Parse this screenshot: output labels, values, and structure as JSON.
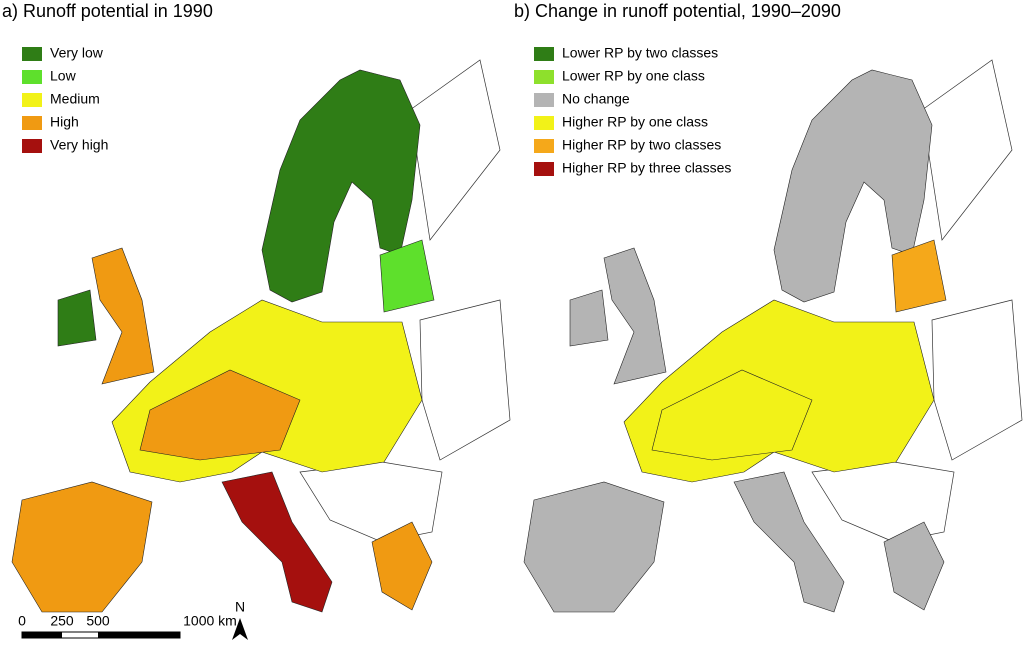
{
  "panels": [
    {
      "title": "a) Runoff potential in 1990",
      "legend": [
        {
          "label": "Very low",
          "color": "#2f7d16"
        },
        {
          "label": "Low",
          "color": "#5ee02c"
        },
        {
          "label": "Medium",
          "color": "#f2f218"
        },
        {
          "label": "High",
          "color": "#f09a12"
        },
        {
          "label": "Very high",
          "color": "#a5100e"
        }
      ]
    },
    {
      "title": "b) Change in runoff potential, 1990–2090",
      "legend": [
        {
          "label": "Lower RP by two classes",
          "color": "#2f7d16"
        },
        {
          "label": "Lower RP by one class",
          "color": "#8ee02c"
        },
        {
          "label": "No change",
          "color": "#b4b4b4"
        },
        {
          "label": "Higher RP by one class",
          "color": "#f2f218"
        },
        {
          "label": "Higher RP by two classes",
          "color": "#f5a81a"
        },
        {
          "label": "Higher RP by three classes",
          "color": "#a5100e"
        }
      ]
    }
  ],
  "scale_bar": {
    "labels": [
      "0",
      "250",
      "500",
      "1000 km"
    ]
  },
  "north_arrow": "N"
}
